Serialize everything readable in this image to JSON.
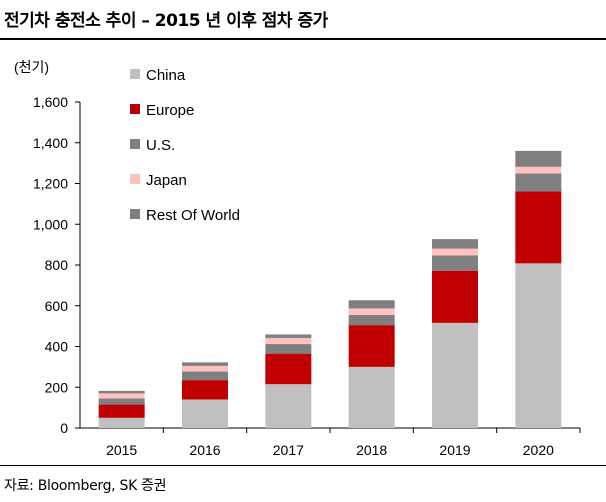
{
  "header": {
    "title": "전기차 충전소 추이 – 2015 년 이후 점차 증가"
  },
  "footer": {
    "source": "자료: Bloomberg, SK 증권"
  },
  "chart_data": {
    "type": "bar",
    "stacked": true,
    "unit_label": "(천기)",
    "categories": [
      "2015",
      "2016",
      "2017",
      "2018",
      "2019",
      "2020"
    ],
    "ylim": [
      0,
      1600
    ],
    "yticks": [
      0,
      200,
      400,
      600,
      800,
      1000,
      1200,
      1400,
      1600
    ],
    "ytick_labels": [
      "0",
      "200",
      "400",
      "600",
      "800",
      "1,000",
      "1,200",
      "1,400",
      "1,600"
    ],
    "grid": false,
    "legend_position": "top-left",
    "series": [
      {
        "name": "China",
        "color": "#c0c0c0",
        "values": [
          50,
          140,
          215,
          300,
          516,
          808
        ]
      },
      {
        "name": "Europe",
        "color": "#c00000",
        "values": [
          65,
          95,
          150,
          205,
          256,
          353
        ]
      },
      {
        "name": "U.S.",
        "color": "#7f7f7f",
        "values": [
          30,
          42,
          47,
          50,
          75,
          88
        ]
      },
      {
        "name": "Japan",
        "color": "#ffc0c0",
        "values": [
          25,
          28,
          30,
          32,
          33,
          33
        ]
      },
      {
        "name": "Rest Of World",
        "color": "#7f7f7f",
        "values": [
          12,
          17,
          17,
          40,
          47,
          78
        ]
      }
    ]
  }
}
